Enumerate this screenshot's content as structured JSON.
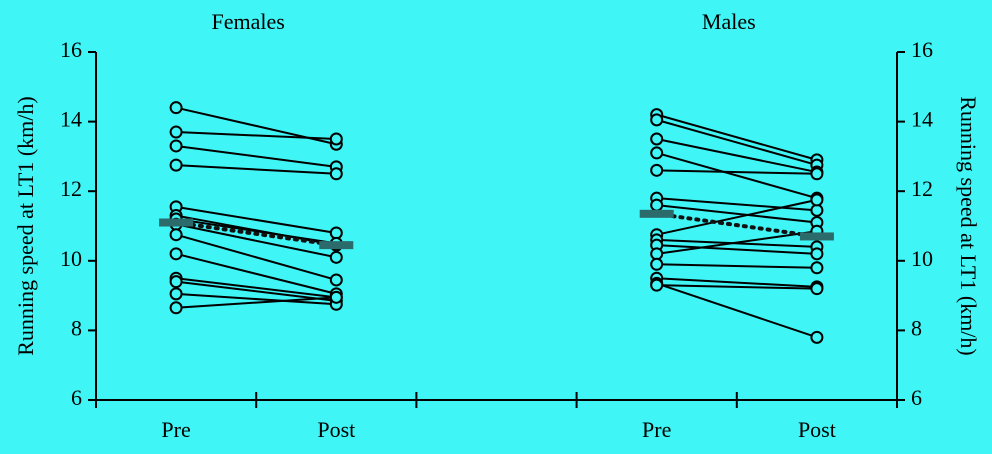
{
  "chart_data": {
    "type": "paired-line",
    "ylabel": "Running speed at LT1 (km/h)",
    "ylim": [
      6,
      16
    ],
    "yticks": [
      6,
      8,
      10,
      12,
      14,
      16
    ],
    "color": "#000000",
    "mean_color": "#2b6b6b",
    "panels": [
      {
        "title": "Females",
        "categories": [
          "Pre",
          "Post"
        ],
        "mean": [
          11.1,
          10.45
        ],
        "subjects": [
          [
            14.4,
            13.35
          ],
          [
            13.7,
            13.5
          ],
          [
            13.3,
            12.7
          ],
          [
            12.75,
            12.5
          ],
          [
            11.55,
            10.8
          ],
          [
            11.3,
            10.45
          ],
          [
            11.2,
            10.5
          ],
          [
            11.05,
            10.1
          ],
          [
            10.75,
            9.45
          ],
          [
            10.2,
            9.05
          ],
          [
            9.5,
            8.95
          ],
          [
            9.4,
            8.85
          ],
          [
            9.05,
            8.75
          ],
          [
            8.65,
            8.95
          ]
        ]
      },
      {
        "title": "Males",
        "categories": [
          "Pre",
          "Post"
        ],
        "mean": [
          11.35,
          10.7
        ],
        "subjects": [
          [
            14.2,
            12.9
          ],
          [
            14.05,
            12.75
          ],
          [
            13.5,
            12.55
          ],
          [
            13.1,
            11.8
          ],
          [
            12.6,
            12.5
          ],
          [
            11.8,
            11.45
          ],
          [
            11.6,
            11.1
          ],
          [
            10.75,
            11.75
          ],
          [
            10.6,
            10.4
          ],
          [
            10.45,
            10.2
          ],
          [
            10.2,
            10.85
          ],
          [
            9.9,
            9.8
          ],
          [
            9.5,
            9.25
          ],
          [
            9.35,
            7.8
          ],
          [
            9.3,
            9.2
          ]
        ]
      }
    ]
  }
}
